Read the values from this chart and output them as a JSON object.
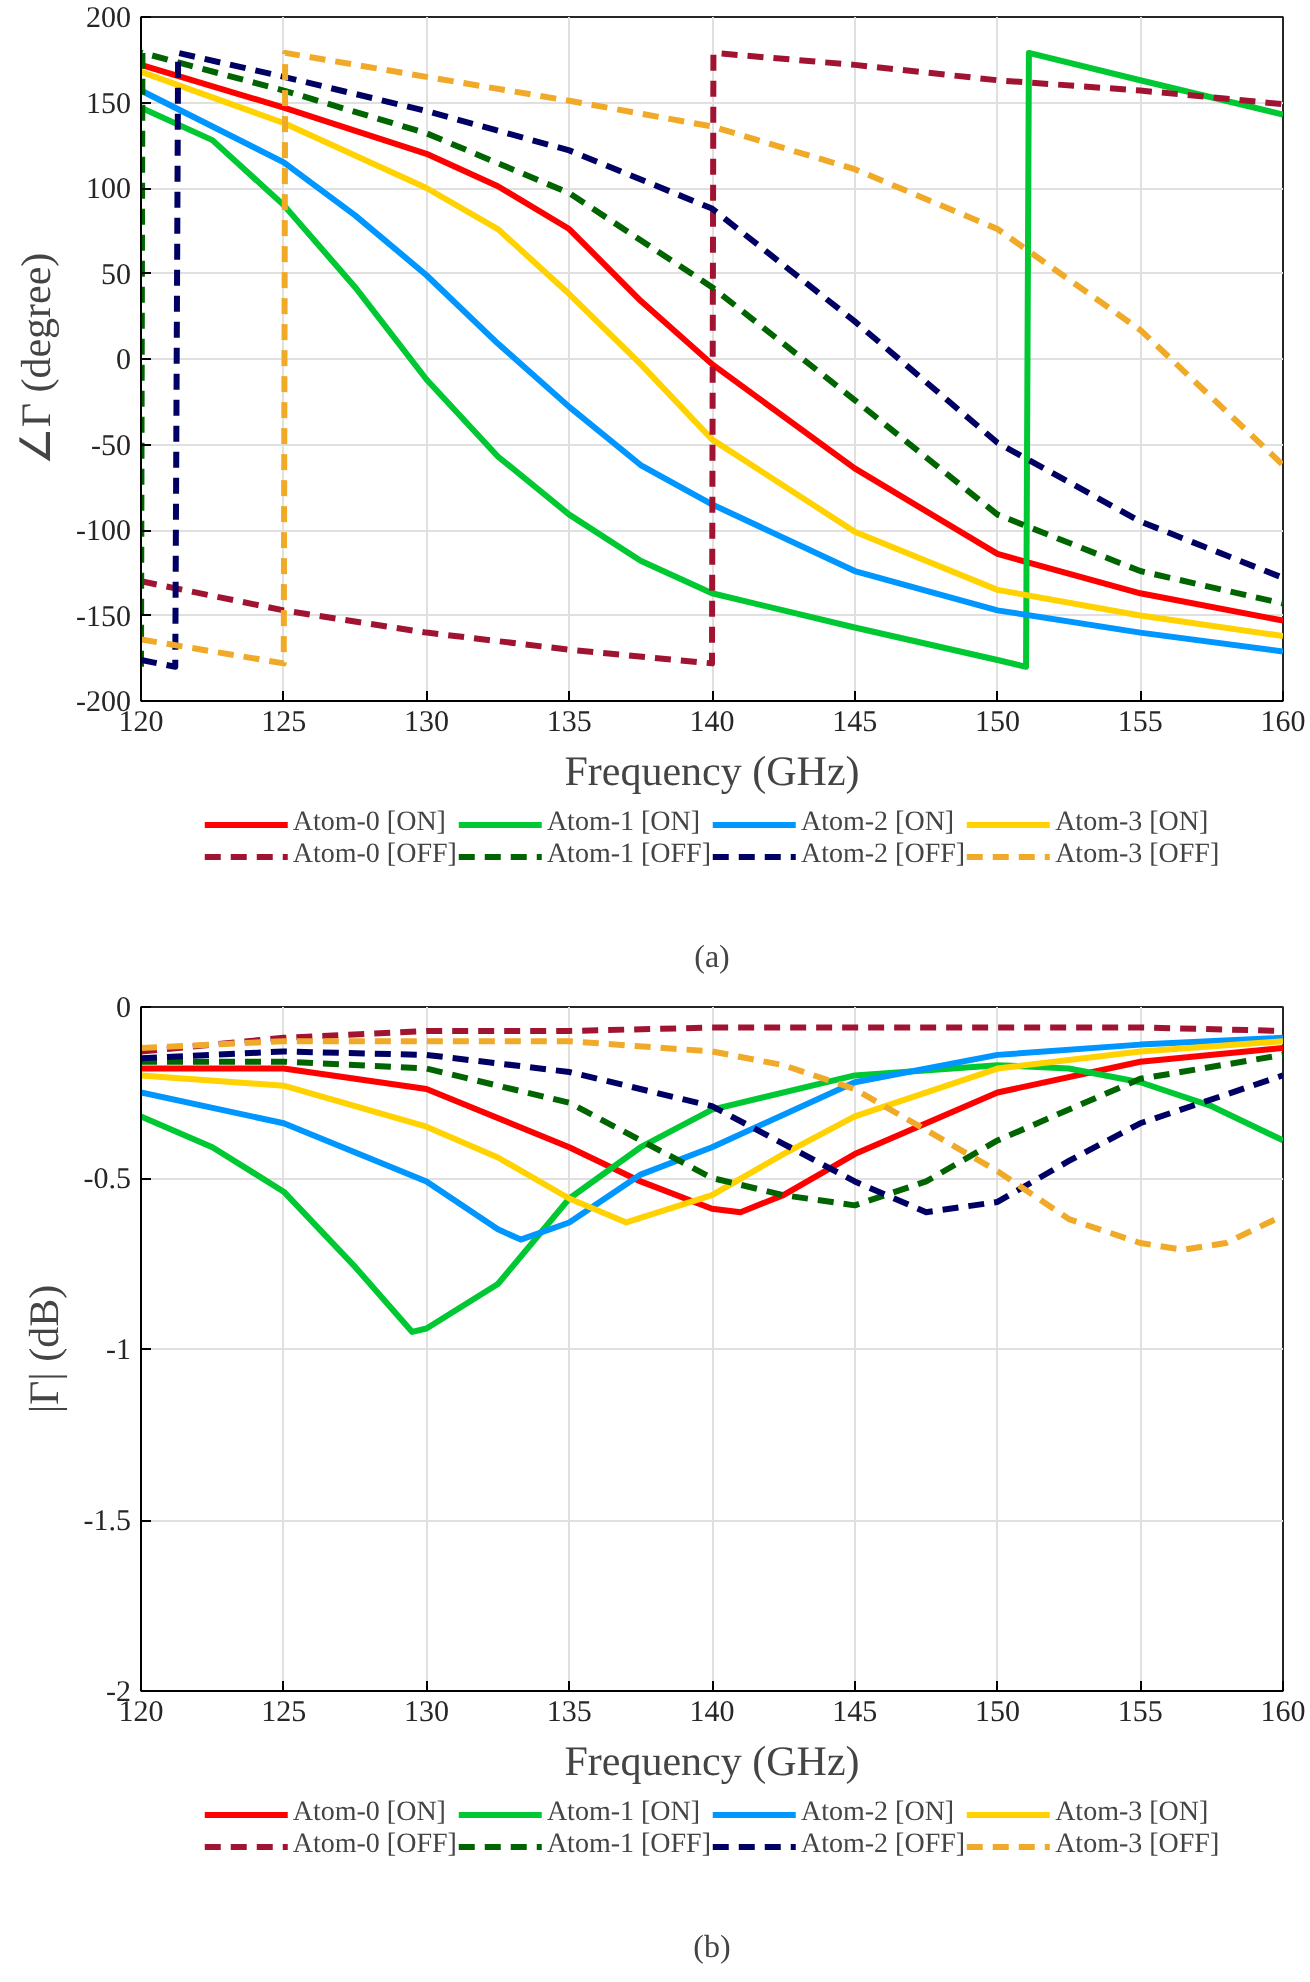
{
  "chart_data": [
    {
      "type": "line",
      "xlabel": "Frequency (GHz)",
      "ylabel": "∠Γ (degree)",
      "annotations": [
        "(a)"
      ],
      "xlim": [
        120,
        160
      ],
      "ylim": [
        -200,
        200
      ],
      "xticks": [
        120,
        125,
        130,
        135,
        140,
        145,
        150,
        155,
        160
      ],
      "yticks": [
        -200,
        -150,
        -100,
        -50,
        0,
        50,
        100,
        150,
        200
      ],
      "grid": true,
      "legend": "bottom",
      "series": [
        {
          "name": "Atom-0 [ON]",
          "color": "#ff0000",
          "line_style": "solid",
          "x": [
            120,
            125,
            130,
            132.5,
            135,
            137.5,
            140,
            145,
            150,
            155,
            160
          ],
          "values": [
            172,
            147,
            120,
            101,
            76,
            34,
            -3,
            -64,
            -114,
            -137,
            -153
          ]
        },
        {
          "name": "Atom-1 [ON]",
          "color": "#00c832",
          "line_style": "solid",
          "x": [
            120,
            122.5,
            125,
            127.5,
            130,
            132.5,
            135,
            137.5,
            140,
            145,
            150,
            151,
            151.1,
            155,
            160
          ],
          "values": [
            147,
            128,
            90,
            42,
            -12,
            -57,
            -91,
            -118,
            -137,
            -157,
            -176,
            -180,
            179,
            163,
            143
          ]
        },
        {
          "name": "Atom-2 [ON]",
          "color": "#0096ff",
          "line_style": "solid",
          "x": [
            120,
            125,
            127.5,
            130,
            132.5,
            135,
            137.5,
            140,
            145,
            150,
            155,
            160
          ],
          "values": [
            157,
            115,
            84,
            49,
            9,
            -28,
            -62,
            -85,
            -124,
            -147,
            -160,
            -171
          ]
        },
        {
          "name": "Atom-3 [ON]",
          "color": "#ffd200",
          "line_style": "solid",
          "x": [
            120,
            125,
            130,
            132.5,
            135,
            137.5,
            140,
            145,
            150,
            155,
            160
          ],
          "values": [
            168,
            138,
            100,
            76,
            38,
            -3,
            -47,
            -101,
            -135,
            -150,
            -162
          ]
        },
        {
          "name": "Atom-0 [OFF]",
          "color": "#a01432",
          "line_style": "dashed",
          "x": [
            120,
            125,
            130,
            135,
            140,
            140.05,
            145,
            150,
            155,
            160
          ],
          "values": [
            -130,
            -147,
            -160,
            -170,
            -178,
            179,
            172,
            163,
            157,
            149
          ]
        },
        {
          "name": "Atom-1 [OFF]",
          "color": "#006400",
          "line_style": "dashed",
          "x": [
            120,
            120.05,
            125,
            130,
            135,
            140,
            145,
            150,
            155,
            160
          ],
          "values": [
            -180,
            179,
            157,
            132,
            97,
            42,
            -24,
            -91,
            -124,
            -143
          ]
        },
        {
          "name": "Atom-2 [OFF]",
          "color": "#000064",
          "line_style": "dashed",
          "x": [
            120,
            121.2,
            121.3,
            125,
            130,
            135,
            140,
            145,
            150,
            155,
            160
          ],
          "values": [
            -176,
            -180,
            179,
            165,
            145,
            122,
            88,
            22,
            -49,
            -95,
            -128
          ]
        },
        {
          "name": "Atom-3 [OFF]",
          "color": "#f0aa28",
          "line_style": "dashed",
          "x": [
            120,
            125,
            125.05,
            130,
            135,
            140,
            145,
            150,
            155,
            160
          ],
          "values": [
            -164,
            -178,
            179,
            165,
            151,
            136,
            111,
            76,
            17,
            -62
          ]
        }
      ]
    },
    {
      "type": "line",
      "xlabel": "Frequency (GHz)",
      "ylabel": "|Γ| (dB)",
      "annotations": [
        "(b)"
      ],
      "xlim": [
        120,
        160
      ],
      "ylim": [
        -2,
        0
      ],
      "xticks": [
        120,
        125,
        130,
        135,
        140,
        145,
        150,
        155,
        160
      ],
      "yticks": [
        -2,
        -1.5,
        -1,
        -0.5,
        0
      ],
      "grid": true,
      "legend": "bottom",
      "series": [
        {
          "name": "Atom-0 [ON]",
          "color": "#ff0000",
          "line_style": "solid",
          "x": [
            120,
            125,
            130,
            135,
            137.5,
            140,
            141,
            142.5,
            145,
            150,
            155,
            160
          ],
          "values": [
            -0.18,
            -0.18,
            -0.24,
            -0.41,
            -0.51,
            -0.59,
            -0.6,
            -0.55,
            -0.43,
            -0.25,
            -0.16,
            -0.12
          ]
        },
        {
          "name": "Atom-1 [ON]",
          "color": "#00c832",
          "line_style": "solid",
          "x": [
            120,
            122.5,
            125,
            127.5,
            129.5,
            130,
            132.5,
            135,
            137.5,
            140,
            145,
            150,
            152.5,
            155,
            157.5,
            160
          ],
          "values": [
            -0.32,
            -0.41,
            -0.54,
            -0.76,
            -0.95,
            -0.94,
            -0.81,
            -0.56,
            -0.41,
            -0.3,
            -0.2,
            -0.17,
            -0.18,
            -0.22,
            -0.29,
            -0.39
          ]
        },
        {
          "name": "Atom-2 [ON]",
          "color": "#0096ff",
          "line_style": "solid",
          "x": [
            120,
            125,
            130,
            132.5,
            133.3,
            135,
            137.5,
            140,
            145,
            150,
            155,
            160
          ],
          "values": [
            -0.25,
            -0.34,
            -0.51,
            -0.65,
            -0.68,
            -0.63,
            -0.49,
            -0.41,
            -0.22,
            -0.14,
            -0.11,
            -0.09
          ]
        },
        {
          "name": "Atom-3 [ON]",
          "color": "#ffd200",
          "line_style": "solid",
          "x": [
            120,
            125,
            130,
            132.5,
            135,
            137,
            140,
            142.5,
            145,
            150,
            155,
            160
          ],
          "values": [
            -0.2,
            -0.23,
            -0.35,
            -0.44,
            -0.56,
            -0.63,
            -0.55,
            -0.43,
            -0.32,
            -0.18,
            -0.13,
            -0.1
          ]
        },
        {
          "name": "Atom-0 [OFF]",
          "color": "#a01432",
          "line_style": "dashed",
          "x": [
            120,
            125,
            130,
            135,
            140,
            150,
            155,
            160
          ],
          "values": [
            -0.13,
            -0.09,
            -0.07,
            -0.07,
            -0.06,
            -0.06,
            -0.06,
            -0.07
          ]
        },
        {
          "name": "Atom-1 [OFF]",
          "color": "#006400",
          "line_style": "dashed",
          "x": [
            120,
            125,
            130,
            135,
            137.5,
            140,
            142.5,
            145,
            147.5,
            150,
            155,
            160
          ],
          "values": [
            -0.16,
            -0.16,
            -0.18,
            -0.28,
            -0.39,
            -0.5,
            -0.55,
            -0.58,
            -0.51,
            -0.39,
            -0.21,
            -0.14
          ]
        },
        {
          "name": "Atom-2 [OFF]",
          "color": "#000064",
          "line_style": "dashed",
          "x": [
            120,
            125,
            130,
            135,
            140,
            142.5,
            145,
            147.5,
            150,
            152.5,
            155,
            160
          ],
          "values": [
            -0.15,
            -0.13,
            -0.14,
            -0.19,
            -0.29,
            -0.4,
            -0.51,
            -0.6,
            -0.57,
            -0.45,
            -0.34,
            -0.2
          ]
        },
        {
          "name": "Atom-3 [OFF]",
          "color": "#f0aa28",
          "line_style": "dashed",
          "x": [
            120,
            125,
            130,
            135,
            140,
            142.5,
            145,
            147.5,
            150,
            152.5,
            155,
            156.5,
            158,
            160
          ],
          "values": [
            -0.12,
            -0.1,
            -0.1,
            -0.1,
            -0.13,
            -0.17,
            -0.24,
            -0.36,
            -0.48,
            -0.62,
            -0.69,
            -0.71,
            -0.69,
            -0.61
          ]
        }
      ]
    }
  ]
}
